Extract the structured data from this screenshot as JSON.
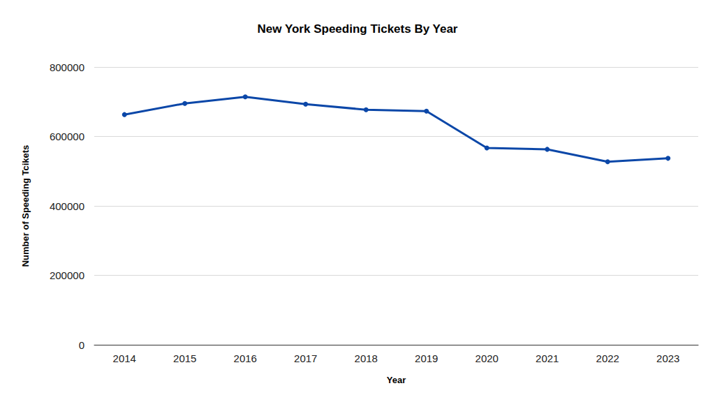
{
  "chart_data": {
    "type": "line",
    "title": "New York Speeding Tickets By Year",
    "x_label": "Year",
    "y_label": "Number of Speeding Tcikets",
    "categories": [
      "2014",
      "2015",
      "2016",
      "2017",
      "2018",
      "2019",
      "2020",
      "2021",
      "2022",
      "2023"
    ],
    "values": [
      663000,
      695000,
      714000,
      693000,
      677000,
      673000,
      567000,
      563000,
      527000,
      537000
    ],
    "color": "#0b47a8",
    "marker": "circle",
    "ylim": [
      0,
      800000
    ],
    "yticks": [
      0,
      200000,
      400000,
      600000,
      800000
    ],
    "grid": true
  }
}
